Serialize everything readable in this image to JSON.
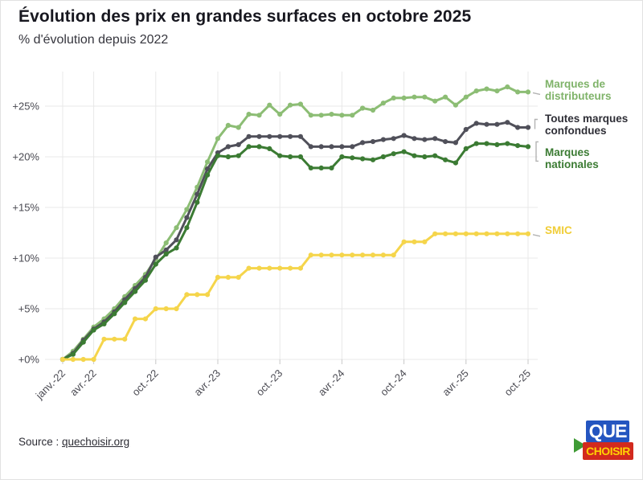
{
  "page": {
    "title": "Évolution des prix en grandes surfaces en octobre 2025",
    "subtitle": "% d'évolution depuis 2022"
  },
  "footer": {
    "source_prefix": "Source : ",
    "source_link": "quechoisir.org"
  },
  "logo": {
    "top_text": "QUE",
    "bottom_text": "CHOISIR",
    "colors": {
      "blue": "#2455c0",
      "red": "#d22a1e",
      "yellow": "#ffd103",
      "green": "#3f9b35"
    }
  },
  "chart_data": {
    "type": "line",
    "title": "Évolution des prix en grandes surfaces en octobre 2025",
    "subtitle": "% d'évolution depuis 2022",
    "xlabel": "",
    "ylabel": "% d'évolution depuis 2022",
    "ylim": [
      0,
      28
    ],
    "grid": true,
    "legend_position": "right",
    "grid_color": "#e8e8e8",
    "x": [
      "janv.-22",
      "févr.-22",
      "mars-22",
      "avr.-22",
      "mai-22",
      "juin-22",
      "juil.-22",
      "août-22",
      "sept.-22",
      "oct.-22",
      "nov.-22",
      "déc.-22",
      "janv.-23",
      "févr.-23",
      "mars-23",
      "avr.-23",
      "mai-23",
      "juin-23",
      "juil.-23",
      "août-23",
      "sept.-23",
      "oct.-23",
      "nov.-23",
      "déc.-23",
      "janv.-24",
      "févr.-24",
      "mars-24",
      "avr.-24",
      "mai-24",
      "juin-24",
      "juil.-24",
      "août-24",
      "sept.-24",
      "oct.-24",
      "nov.-24",
      "déc.-24",
      "janv.-25",
      "févr.-25",
      "mars-25",
      "avr.-25",
      "mai-25",
      "juin-25",
      "juil.-25",
      "août-25",
      "sept.-25",
      "oct.-25"
    ],
    "x_ticks": [
      {
        "index": 0,
        "label": "janv.-22"
      },
      {
        "index": 3,
        "label": "avr.-22"
      },
      {
        "index": 9,
        "label": "oct.-22"
      },
      {
        "index": 15,
        "label": "avr.-23"
      },
      {
        "index": 21,
        "label": "oct.-23"
      },
      {
        "index": 27,
        "label": "avr.-24"
      },
      {
        "index": 33,
        "label": "oct.-24"
      },
      {
        "index": 39,
        "label": "avr.-25"
      },
      {
        "index": 45,
        "label": "oct.-25"
      }
    ],
    "y_ticks": [
      {
        "value": 0,
        "label": "+0%"
      },
      {
        "value": 5,
        "label": "+5%"
      },
      {
        "value": 10,
        "label": "+10%"
      },
      {
        "value": 15,
        "label": "+15%"
      },
      {
        "value": 20,
        "label": "+20%"
      },
      {
        "value": 25,
        "label": "+25%"
      }
    ],
    "series": [
      {
        "name": "Marques de distributeurs",
        "legend_label": "Marques de\ndistributeurs",
        "color": "#8cbd74",
        "legend_color": "#7fb369",
        "connector": "dash",
        "values": [
          0,
          0.8,
          2.0,
          3.2,
          4.0,
          5.0,
          6.2,
          7.3,
          8.4,
          9.9,
          11.5,
          13.0,
          14.8,
          17.0,
          19.5,
          21.8,
          23.1,
          22.9,
          24.2,
          24.1,
          25.1,
          24.2,
          25.1,
          25.2,
          24.1,
          24.1,
          24.2,
          24.1,
          24.1,
          24.8,
          24.6,
          25.3,
          25.8,
          25.8,
          25.9,
          25.9,
          25.5,
          25.9,
          25.1,
          25.9,
          26.5,
          26.7,
          26.5,
          26.9,
          26.4,
          26.4
        ]
      },
      {
        "name": "Toutes marques confondues",
        "legend_label": "Toutes marques\nconfondues",
        "color": "#50505a",
        "legend_color": "#2e2e36",
        "connector": "hook",
        "values": [
          0,
          0.6,
          1.9,
          3.0,
          3.7,
          4.7,
          5.9,
          7.0,
          8.1,
          10.1,
          10.8,
          11.8,
          14.0,
          16.3,
          18.8,
          20.4,
          21.0,
          21.2,
          22.0,
          22.0,
          22.0,
          22.0,
          22.0,
          22.0,
          21.0,
          21.0,
          21.0,
          21.0,
          21.0,
          21.4,
          21.5,
          21.7,
          21.8,
          22.1,
          21.8,
          21.7,
          21.8,
          21.5,
          21.4,
          22.7,
          23.3,
          23.2,
          23.2,
          23.4,
          22.9,
          22.9
        ]
      },
      {
        "name": "Marques nationales",
        "legend_label": "Marques\nnationales",
        "color": "#3b7b33",
        "legend_color": "#3b7b33",
        "connector": "bracket",
        "values": [
          0,
          0.5,
          1.7,
          2.9,
          3.5,
          4.5,
          5.6,
          6.7,
          7.8,
          9.4,
          10.4,
          11.0,
          13.0,
          15.5,
          18.2,
          20.1,
          20.0,
          20.1,
          21.0,
          21.0,
          20.8,
          20.1,
          20.0,
          20.0,
          18.9,
          18.9,
          18.9,
          20.0,
          19.9,
          19.8,
          19.7,
          20.0,
          20.3,
          20.5,
          20.1,
          20.0,
          20.1,
          19.7,
          19.4,
          20.8,
          21.3,
          21.3,
          21.2,
          21.3,
          21.1,
          21.0
        ]
      },
      {
        "name": "SMIC",
        "legend_label": "SMIC",
        "color": "#f5d54b",
        "legend_color": "#f0cd37",
        "connector": "dash",
        "values": [
          0,
          0,
          0,
          0,
          2.0,
          2.0,
          2.0,
          4.0,
          4.0,
          5.0,
          5.0,
          5.0,
          6.4,
          6.4,
          6.4,
          8.1,
          8.1,
          8.1,
          9.0,
          9.0,
          9.0,
          9.0,
          9.0,
          9.0,
          10.3,
          10.3,
          10.3,
          10.3,
          10.3,
          10.3,
          10.3,
          10.3,
          10.3,
          11.6,
          11.6,
          11.6,
          12.4,
          12.4,
          12.4,
          12.4,
          12.4,
          12.4,
          12.4,
          12.4,
          12.4,
          12.4
        ]
      }
    ]
  }
}
